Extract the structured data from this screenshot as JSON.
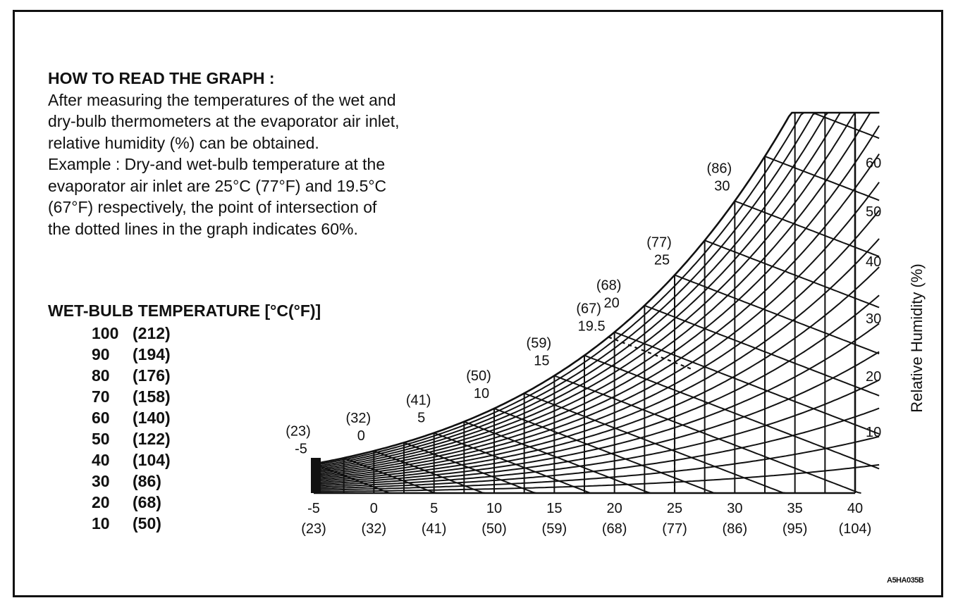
{
  "instructions": {
    "heading": "HOW TO READ THE GRAPH :",
    "lines": [
      "After measuring the temperatures of the wet and",
      "dry-bulb thermometers at the evaporator air inlet,",
      "relative humidity (%) can be obtained.",
      "Example : Dry-and wet-bulb temperature at the",
      "evaporator air inlet are 25°C (77°F) and 19.5°C",
      "(67°F) respectively, the point of intersection of",
      "the dotted lines in the graph indicates 60%."
    ]
  },
  "wet_bulb_legend": {
    "title": "WET-BULB TEMPERATURE [°C(°F)]",
    "rows": [
      {
        "c": "100",
        "f": "(212)"
      },
      {
        "c": "90",
        "f": "(194)"
      },
      {
        "c": "80",
        "f": "(176)"
      },
      {
        "c": "70",
        "f": "(158)"
      },
      {
        "c": "60",
        "f": "(140)"
      },
      {
        "c": "50",
        "f": "(122)"
      },
      {
        "c": "40",
        "f": "(104)"
      },
      {
        "c": "30",
        "f": "(86)"
      },
      {
        "c": "20",
        "f": "(68)"
      },
      {
        "c": "10",
        "f": "(50)"
      }
    ]
  },
  "figure_code": "A5HA035B",
  "chart_data": {
    "type": "line",
    "x_ticks": [
      {
        "c": "-5",
        "f": "(23)",
        "v": -5
      },
      {
        "c": "0",
        "f": "(32)",
        "v": 0
      },
      {
        "c": "5",
        "f": "(41)",
        "v": 5
      },
      {
        "c": "10",
        "f": "(50)",
        "v": 10
      },
      {
        "c": "15",
        "f": "(59)",
        "v": 15
      },
      {
        "c": "20",
        "f": "(68)",
        "v": 20
      },
      {
        "c": "25",
        "f": "(77)",
        "v": 25
      },
      {
        "c": "30",
        "f": "(86)",
        "v": 30
      },
      {
        "c": "35",
        "f": "(95)",
        "v": 35
      },
      {
        "c": "40",
        "f": "(104)",
        "v": 40
      }
    ],
    "xlim": [
      -5,
      40
    ],
    "ylabel": "Relative Humidity (%)",
    "y_ticks": [
      "10",
      "20",
      "30",
      "40",
      "50",
      "60"
    ],
    "saturation_labels": [
      {
        "c": "-5",
        "f": "(23)",
        "v": -5
      },
      {
        "c": "0",
        "f": "(32)",
        "v": 0
      },
      {
        "c": "5",
        "f": "(41)",
        "v": 5
      },
      {
        "c": "10",
        "f": "(50)",
        "v": 10
      },
      {
        "c": "15",
        "f": "(59)",
        "v": 15
      },
      {
        "c": "19.5",
        "f": "(67)",
        "v": 19.5
      },
      {
        "c": "20",
        "f": "(68)",
        "v": 20
      },
      {
        "c": "25",
        "f": "(77)",
        "v": 25
      },
      {
        "c": "30",
        "f": "(86)",
        "v": 30
      }
    ],
    "example": {
      "dry_bulb": 25,
      "wet_bulb": 19.5,
      "relative_humidity": 60
    }
  }
}
